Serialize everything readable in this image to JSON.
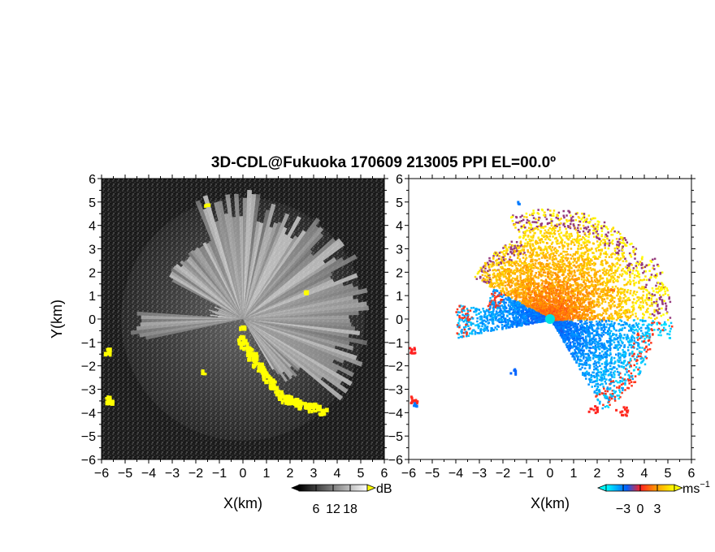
{
  "chart_data": {
    "type": "heatmap",
    "title": "3D-CDL@Fukuoka 170609 213005 PPI EL=00.0º",
    "grid": false,
    "panels": [
      {
        "name": "reflectivity",
        "xlabel": "X(km)",
        "ylabel": "Y(km)",
        "xlim": [
          -6,
          6
        ],
        "ylim": [
          -6,
          6
        ],
        "x_ticks": [
          -6,
          -5,
          -4,
          -3,
          -2,
          -1,
          0,
          1,
          2,
          3,
          4,
          5,
          6
        ],
        "y_ticks": [
          -6,
          -5,
          -4,
          -3,
          -2,
          -1,
          0,
          1,
          2,
          3,
          4,
          5,
          6
        ],
        "x_tick_labels": [
          "−6",
          "−5",
          "−4",
          "−3",
          "−2",
          "−1",
          "0",
          "1",
          "2",
          "3",
          "4",
          "5",
          "6"
        ],
        "y_tick_labels": [
          "−6",
          "−5",
          "−4",
          "−3",
          "−2",
          "−1",
          "0",
          "1",
          "2",
          "3",
          "4",
          "5",
          "6"
        ],
        "colorbar": {
          "unit": "dB",
          "ticks": [
            6,
            12,
            18
          ],
          "tick_labels": [
            "6",
            "12",
            "18"
          ],
          "range": [
            0,
            24
          ],
          "colors": [
            "#000000",
            "#ffffff"
          ],
          "saturation_color": "#ffff00"
        }
      },
      {
        "name": "velocity",
        "xlabel": "X(km)",
        "ylabel": "",
        "xlim": [
          -6,
          6
        ],
        "ylim": [
          -6,
          6
        ],
        "x_ticks": [
          -6,
          -5,
          -4,
          -3,
          -2,
          -1,
          0,
          1,
          2,
          3,
          4,
          5,
          6
        ],
        "y_ticks": [
          -6,
          -5,
          -4,
          -3,
          -2,
          -1,
          0,
          1,
          2,
          3,
          4,
          5,
          6
        ],
        "x_tick_labels": [
          "−6",
          "−5",
          "−4",
          "−3",
          "−2",
          "−1",
          "0",
          "1",
          "2",
          "3",
          "4",
          "5",
          "6"
        ],
        "y_tick_labels": [
          "−6",
          "−5",
          "−4",
          "−3",
          "−2",
          "−1",
          "0",
          "1",
          "2",
          "3",
          "4",
          "5",
          "6"
        ],
        "colorbar": {
          "unit_base": "ms",
          "unit_exp": "−1",
          "ticks": [
            -3,
            0,
            3
          ],
          "tick_labels": [
            "−3",
            "0",
            "3"
          ],
          "range": [
            -6,
            6
          ],
          "colors": [
            "#00ffff",
            "#0060ff",
            "#ff2020",
            "#ffa000",
            "#ffff00"
          ]
        }
      }
    ]
  }
}
